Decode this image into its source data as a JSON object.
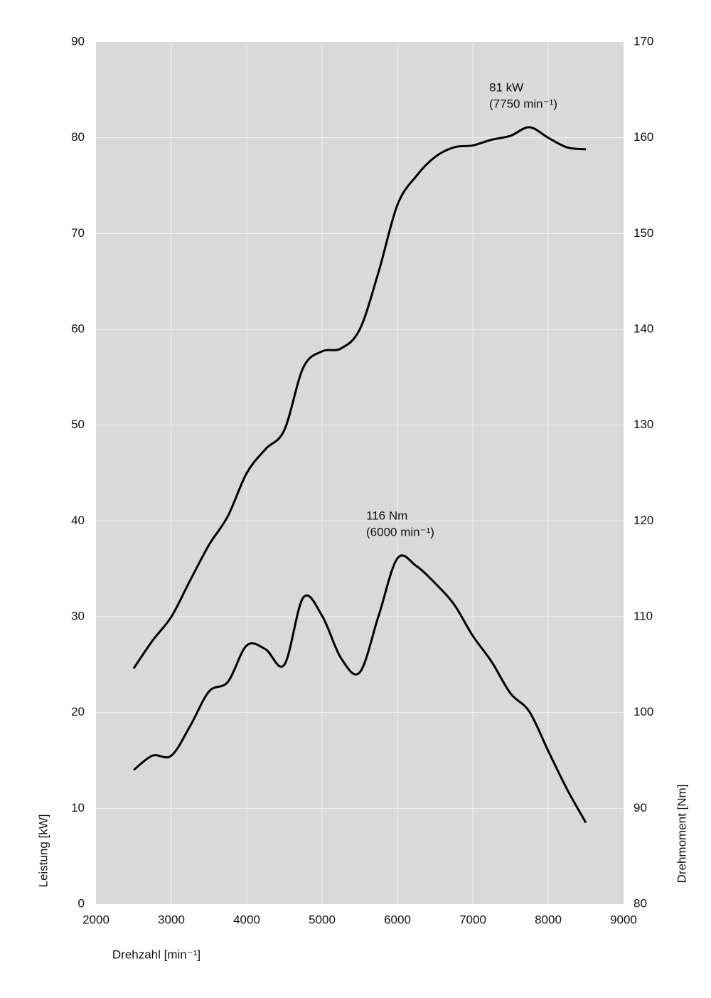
{
  "chart_data": {
    "type": "line",
    "xlabel": "Drehzahl [min⁻¹]",
    "ylabel": "Leistung [kW]",
    "y2label": "Drehmoment [Nm]",
    "x": [
      2500,
      2750,
      3000,
      3250,
      3500,
      3750,
      4000,
      4250,
      4500,
      4750,
      5000,
      5250,
      5500,
      5750,
      6000,
      6250,
      6500,
      6750,
      7000,
      7250,
      7500,
      7750,
      8000,
      8250,
      8500
    ],
    "series": [
      {
        "name": "Leistung",
        "color": "#000000",
        "values": [
          24.6,
          27.5,
          30,
          33.8,
          37.5,
          40.5,
          45,
          47.5,
          49.5,
          56,
          57.7,
          58,
          60,
          66,
          73,
          76,
          78,
          79,
          79.2,
          79.8,
          80.2,
          81.1,
          80,
          79,
          78.8
        ]
      },
      {
        "name": "Drehmoment",
        "color": "#000000",
        "axis": "y2",
        "values": [
          94,
          95.5,
          95.5,
          98.6,
          102.2,
          103.2,
          107,
          106.6,
          105,
          112,
          110.1,
          105.7,
          104.2,
          110.1,
          116.1,
          115.3,
          113.5,
          111.3,
          108,
          105.3,
          102,
          100.1,
          96,
          92,
          88.5
        ]
      }
    ],
    "annotations": [
      {
        "lines": [
          "81 kW",
          "(7750 min⁻¹)"
        ]
      },
      {
        "lines": [
          "116 Nm",
          "(6000 min⁻¹)"
        ]
      }
    ],
    "xlim": [
      2000,
      9000
    ],
    "xticks": [
      2000,
      3000,
      4000,
      5000,
      6000,
      7000,
      8000,
      9000
    ],
    "ylim": [
      0,
      90
    ],
    "yticks": [
      0,
      10,
      20,
      30,
      40,
      50,
      60,
      70,
      80,
      90
    ],
    "y2lim": [
      80,
      170
    ],
    "y2ticks": [
      80,
      90,
      100,
      110,
      120,
      130,
      140,
      150,
      160,
      170
    ],
    "grid": true
  }
}
